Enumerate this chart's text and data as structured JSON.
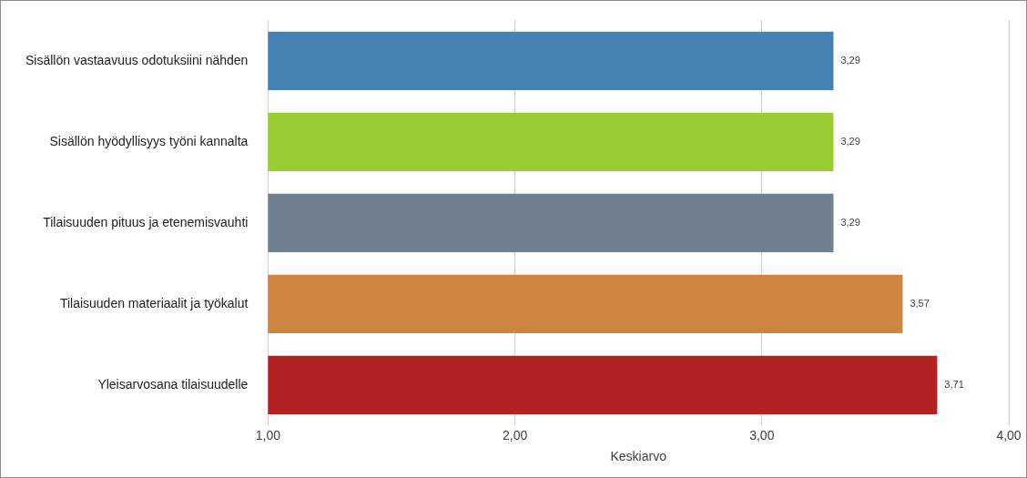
{
  "chart_data": {
    "type": "bar",
    "orientation": "horizontal",
    "xlabel": "Keskiarvo",
    "categories": [
      "Sisällön vastaavuus odotuksiini nähden",
      "Sisällön hyödyllisyys työni kannalta",
      "Tilaisuuden pituus ja etenemisvauhti",
      "Tilaisuuden materiaalit ja työkalut",
      "Yleisarvosana tilaisuudelle"
    ],
    "values": [
      3.29,
      3.29,
      3.29,
      3.57,
      3.71
    ],
    "value_labels": [
      "3,29",
      "3,29",
      "3,29",
      "3,57",
      "3,71"
    ],
    "colors": [
      "#4682b4",
      "#9acd32",
      "#708090",
      "#cd853f",
      "#b22222"
    ],
    "xlim": [
      1,
      4
    ],
    "xticks": [
      {
        "value": 1,
        "label": "1,00"
      },
      {
        "value": 2,
        "label": "2,00"
      },
      {
        "value": 3,
        "label": "3,00"
      },
      {
        "value": 4,
        "label": "4,00"
      }
    ],
    "grid": "x",
    "legend": false
  }
}
